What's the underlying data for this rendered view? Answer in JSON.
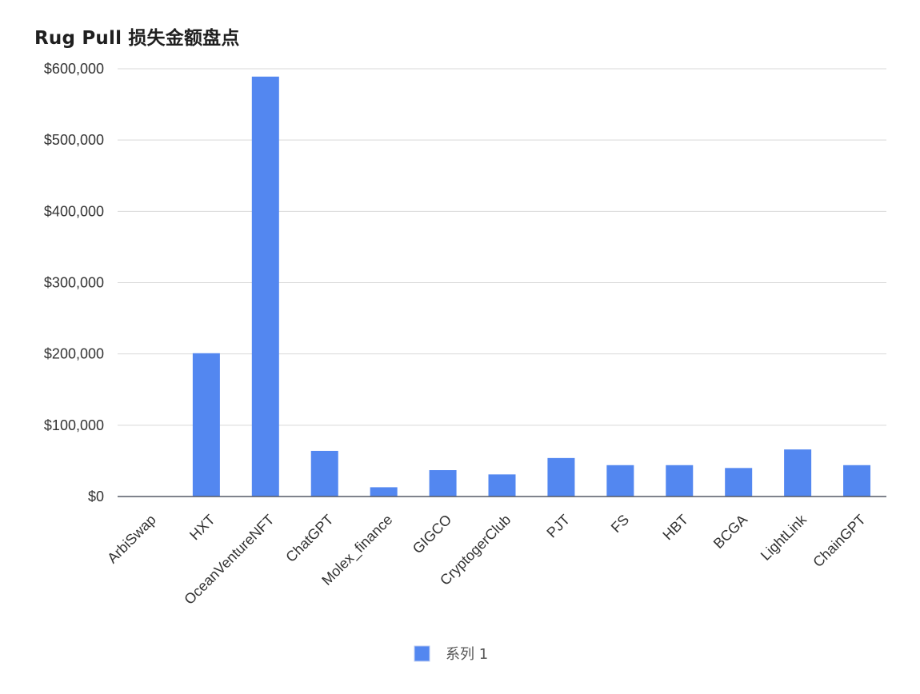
{
  "title": "Rug Pull 损失金额盘点",
  "chart_data": {
    "type": "bar",
    "title": "Rug Pull 损失金额盘点",
    "categories": [
      "ArbiSwap",
      "HXT",
      "OceanVentureNFT",
      "ChatGPT",
      "Molex_finance",
      "GIGCO",
      "CryptogerClub",
      "PJT",
      "FS",
      "HBT",
      "BCGA",
      "LightLink",
      "ChainGPT"
    ],
    "series": [
      {
        "name": "系列 1",
        "color": "#5387f0",
        "values": [
          0,
          201000,
          589000,
          64000,
          13000,
          37000,
          31000,
          54000,
          44000,
          44000,
          40000,
          66000,
          44000
        ]
      }
    ],
    "y_ticks": [
      "$0",
      "$100,000",
      "$200,000",
      "$300,000",
      "$400,000",
      "$500,000",
      "$600,000"
    ],
    "ylim": [
      0,
      600000
    ],
    "xlabel": "",
    "ylabel": "",
    "grid": true,
    "legend_position": "bottom"
  }
}
